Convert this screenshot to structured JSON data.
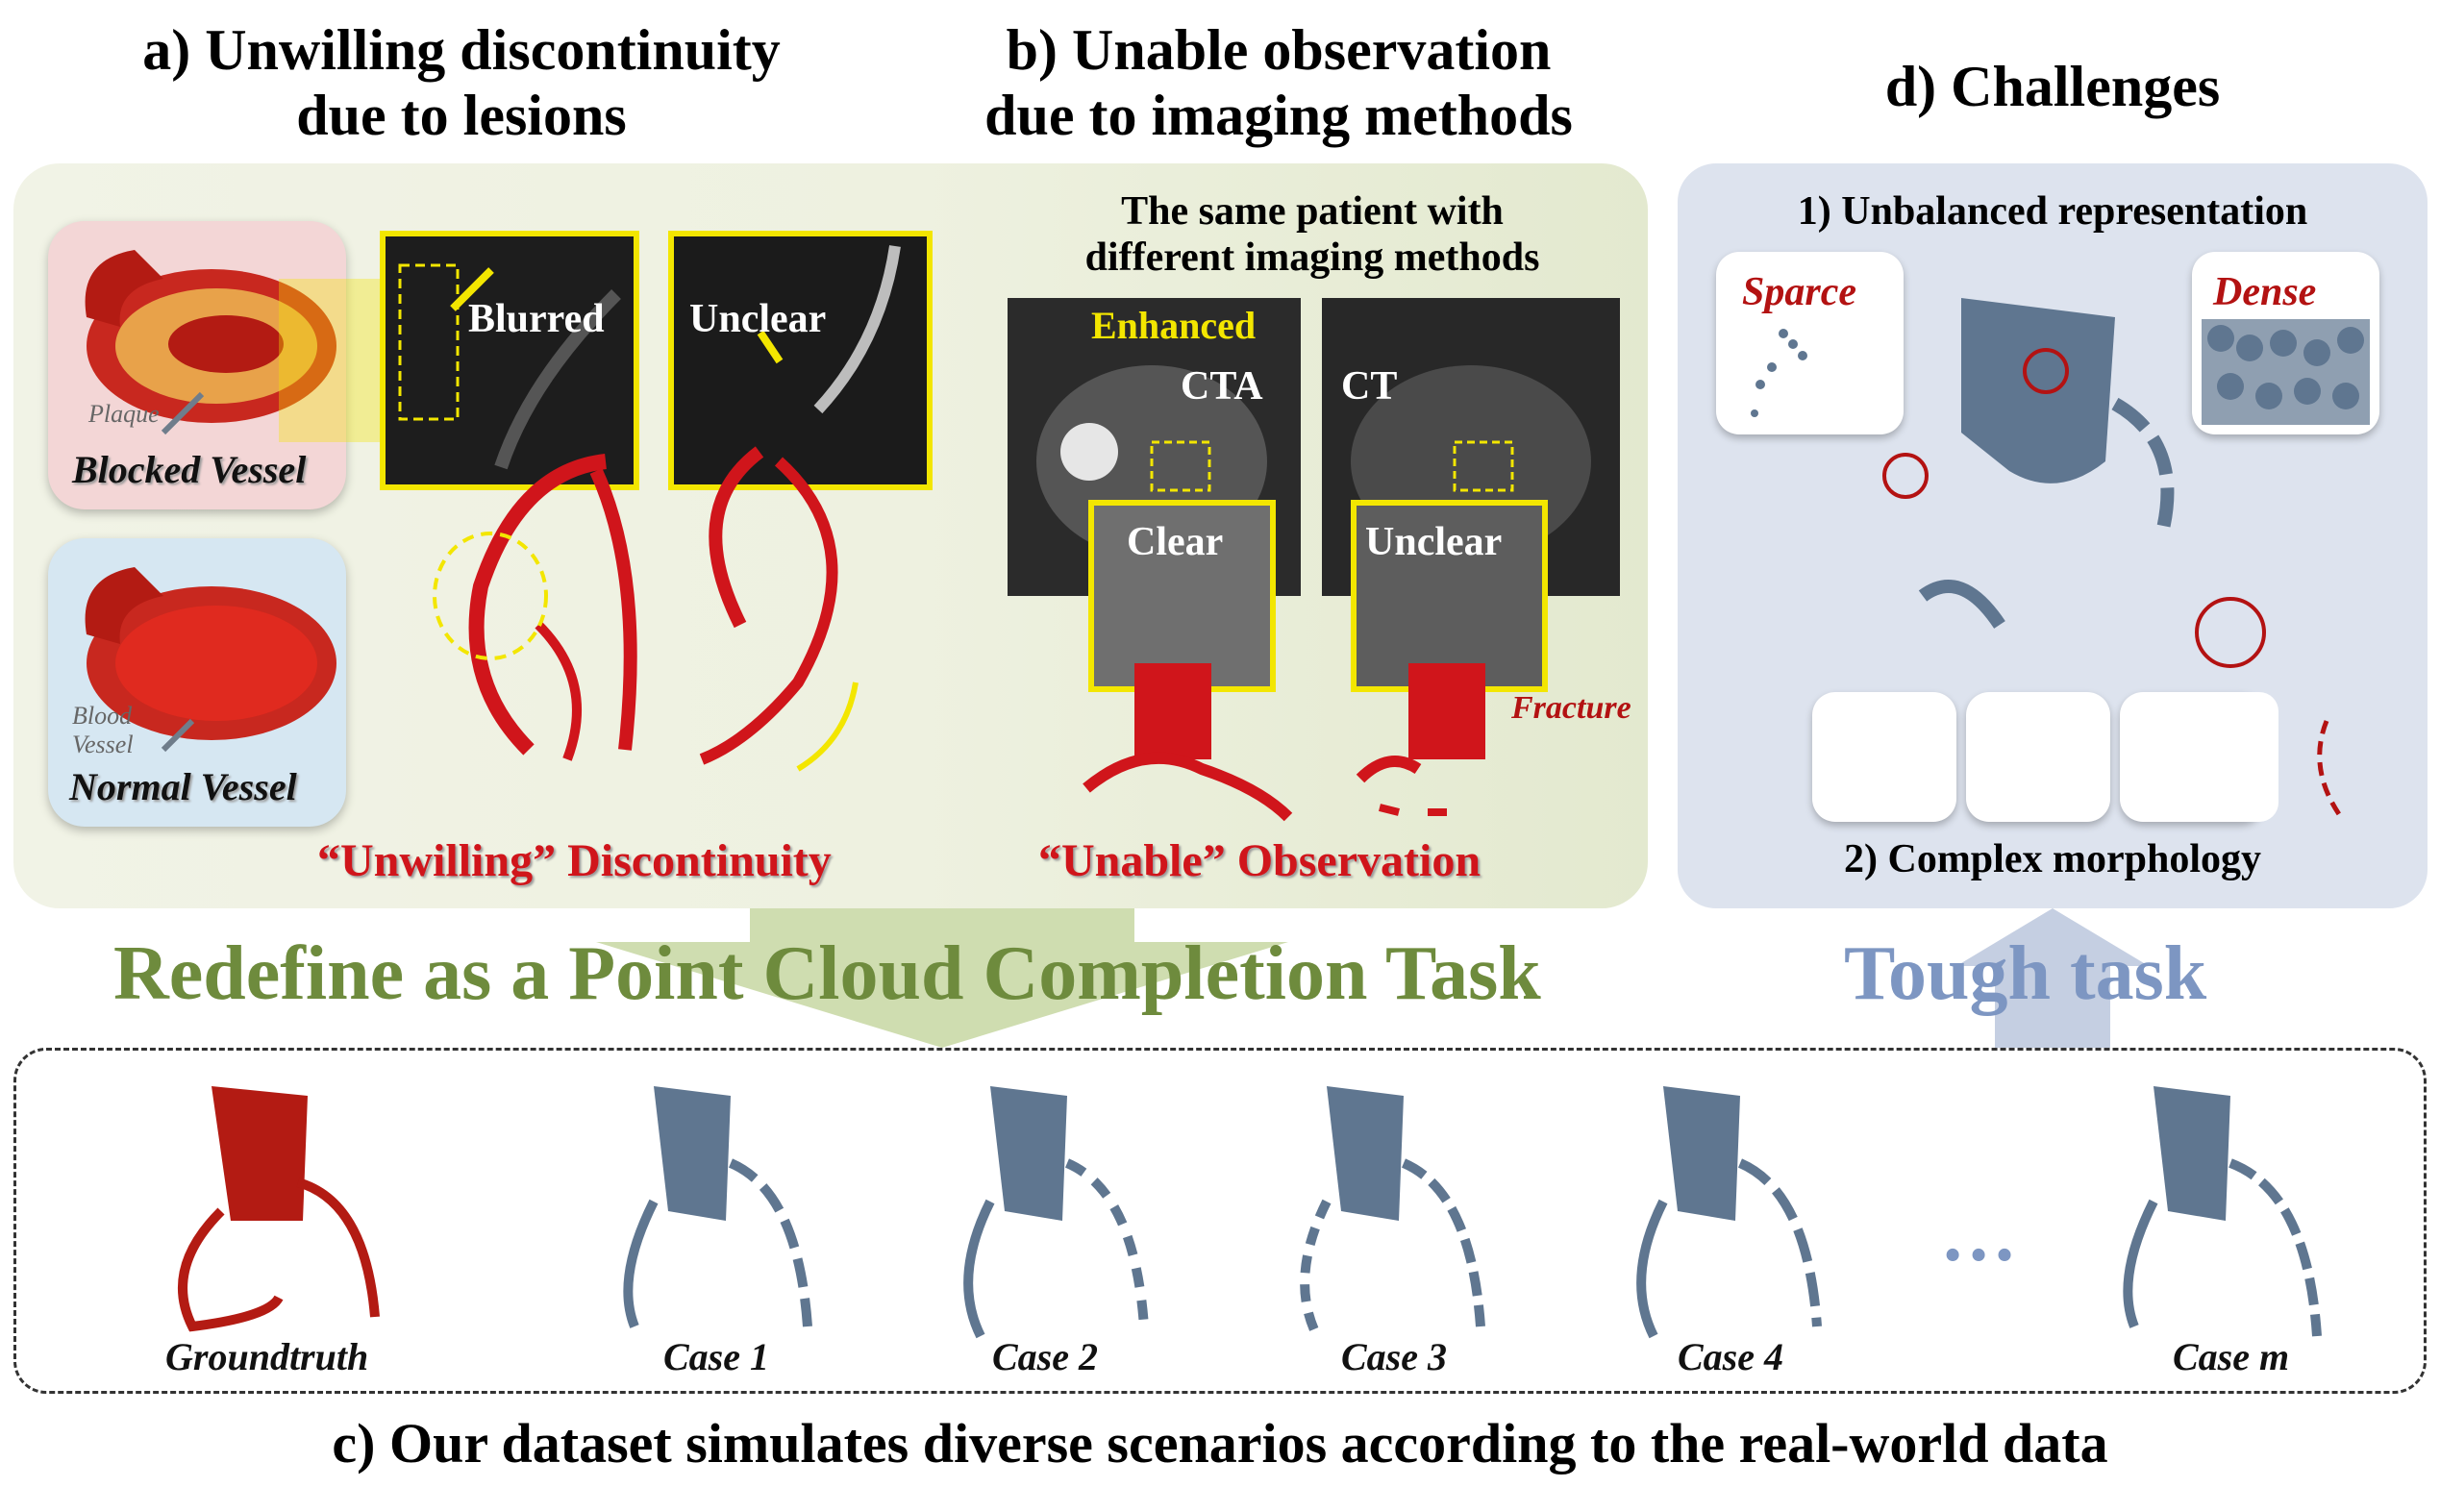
{
  "titles": {
    "a_line1": "a) Unwilling discontinuity",
    "a_line2": "due to lesions",
    "b_line1": "b) Unable observation",
    "b_line2": "due to imaging methods",
    "d": "d) Challenges",
    "c": "c) Our dataset simulates diverse scenarios according to the real-world data"
  },
  "panel_a": {
    "plaque": "Plaque",
    "blocked_vessel": "Blocked Vessel",
    "blood_vessel_1": "Blood",
    "blood_vessel_2": "Vessel",
    "normal_vessel": "Normal Vessel",
    "blurred": "Blurred",
    "unclear": "Unclear",
    "caption_quote": "“Unwilling”",
    "caption_word": "Discontinuity"
  },
  "panel_b": {
    "header1": "The same patient with",
    "header2": "different imaging methods",
    "enhanced": "Enhanced",
    "cta": "CTA",
    "ct": "CT",
    "clear": "Clear",
    "unclear": "Unclear",
    "fracture": "Fracture",
    "caption_quote": "“Unable”",
    "caption_word": "Observation"
  },
  "panel_d": {
    "unbalanced": "1) Unbalanced representation",
    "sparce": "Sparce",
    "dense": "Dense",
    "complex": "2) Complex morphology"
  },
  "arrows": {
    "redefine": "Redefine as a Point Cloud Completion Task",
    "tough": "Tough task"
  },
  "cases": {
    "groundtruth": "Groundtruth",
    "case1": "Case 1",
    "case2": "Case 2",
    "case3": "Case 3",
    "case4": "Case 4",
    "ellipsis": "…",
    "casem": "Case m"
  },
  "colors": {
    "vessel_red": "#d0151b",
    "point_blue": "#5f7690",
    "highlight_yellow": "#f3e600",
    "green_text": "#6e8b3d",
    "blue_text": "#7d96c2"
  }
}
